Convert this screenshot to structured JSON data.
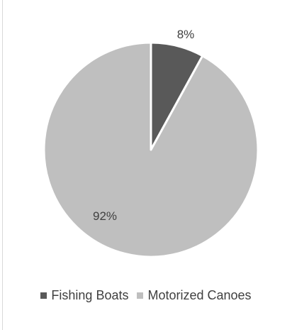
{
  "chart_data": {
    "type": "pie",
    "slices": [
      {
        "name": "Fishing Boats",
        "value": 8,
        "label": "8%",
        "color": "#595959"
      },
      {
        "name": "Motorized Canoes",
        "value": 92,
        "label": "92%",
        "color": "#bfbfbf"
      }
    ],
    "legend": {
      "position": "bottom",
      "entries": [
        "Fishing Boats",
        "Motorized Canoes"
      ]
    },
    "start_angle": "12 o'clock",
    "direction": "clockwise"
  }
}
